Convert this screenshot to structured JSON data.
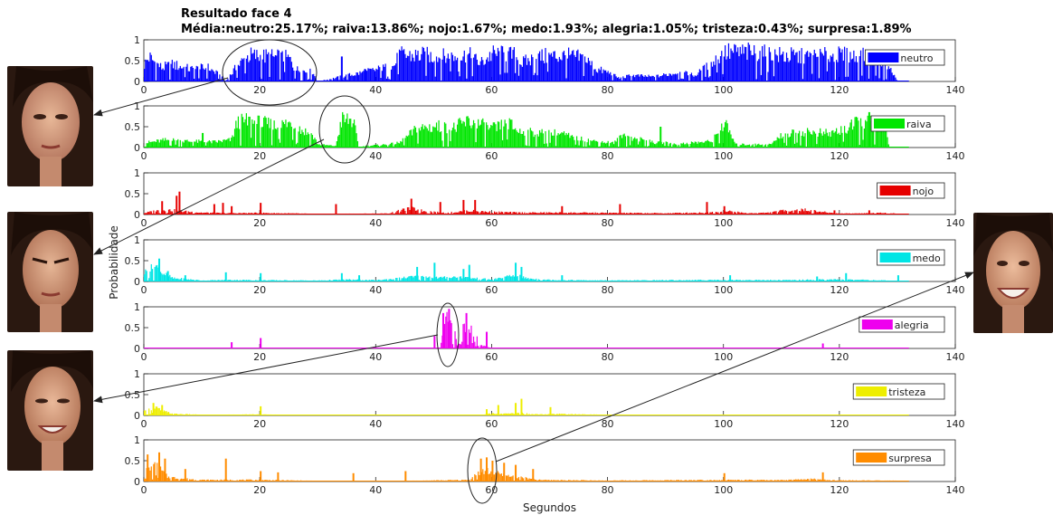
{
  "title": "Resultado face 4",
  "subtitle": "Média:neutro:25.17%; raiva:13.86%; nojo:1.67%; medo:1.93%; alegria:1.05%; tristeza:0.43%; surpresa:1.89%",
  "xlabel": "Segundos",
  "ylabel": "Probabilidade",
  "chart_data": {
    "type": "bar",
    "title": "Resultado face 4",
    "subtitle": "Média:neutro:25.17%; raiva:13.86%; nojo:1.67%; medo:1.93%; alegria:1.05%; tristeza:0.43%; surpresa:1.89%",
    "xlabel": "Segundos",
    "ylabel": "Probabilidade",
    "xlim": [
      0,
      140
    ],
    "ylim": [
      0,
      1
    ],
    "xticks": [
      0,
      20,
      40,
      60,
      80,
      100,
      120,
      140
    ],
    "yticks": [
      0,
      0.5,
      1
    ],
    "x_step": 0.2,
    "x_end": 132,
    "legend_position": "right",
    "series": [
      {
        "name": "neutro",
        "color": "#0000ff",
        "mean_percent": 25.17,
        "envelope": [
          [
            0,
            0.55
          ],
          [
            0.8,
            0.8
          ],
          [
            3,
            0.45
          ],
          [
            5,
            0.55
          ],
          [
            8,
            0.4
          ],
          [
            11,
            0.45
          ],
          [
            13,
            0.2
          ],
          [
            14,
            0
          ],
          [
            16,
            0.5
          ],
          [
            18,
            0.85
          ],
          [
            22,
            0.8
          ],
          [
            25,
            0.75
          ],
          [
            26,
            0.4
          ],
          [
            29,
            0.3
          ],
          [
            30,
            0
          ],
          [
            43,
            0.5
          ],
          [
            44,
            0.85
          ],
          [
            48,
            0.85
          ],
          [
            52,
            0.8
          ],
          [
            56,
            0.85
          ],
          [
            58,
            0.6
          ],
          [
            60,
            0.9
          ],
          [
            64,
            0.85
          ],
          [
            65,
            0.6
          ],
          [
            68,
            0.8
          ],
          [
            72,
            0.85
          ],
          [
            76,
            0.75
          ],
          [
            78,
            0.4
          ],
          [
            80,
            0.3
          ],
          [
            82,
            0.1
          ],
          [
            84,
            0.2
          ],
          [
            88,
            0.15
          ],
          [
            92,
            0.3
          ],
          [
            95,
            0.2
          ],
          [
            98,
            0.6
          ],
          [
            100,
            0.95
          ],
          [
            105,
            0.95
          ],
          [
            106,
            0.9
          ],
          [
            110,
            0.85
          ],
          [
            114,
            0.8
          ],
          [
            120,
            0.85
          ],
          [
            125,
            0.8
          ],
          [
            128,
            0.6
          ],
          [
            130,
            0
          ]
        ],
        "spikes": [
          [
            34,
            0.6
          ],
          [
            38,
            0.3
          ]
        ]
      },
      {
        "name": "raiva",
        "color": "#00e600",
        "mean_percent": 13.86,
        "envelope": [
          [
            0,
            0.15
          ],
          [
            4,
            0.25
          ],
          [
            8,
            0.2
          ],
          [
            12,
            0.18
          ],
          [
            15,
            0.25
          ],
          [
            16,
            0.8
          ],
          [
            18,
            0.85
          ],
          [
            21,
            0.75
          ],
          [
            23,
            0.7
          ],
          [
            25,
            0.8
          ],
          [
            26,
            0.7
          ],
          [
            28,
            0.5
          ],
          [
            29,
            0.4
          ],
          [
            30,
            0.1
          ],
          [
            33,
            0.05
          ],
          [
            34,
            0.9
          ],
          [
            36,
            0.9
          ],
          [
            37,
            0
          ],
          [
            38,
            0.05
          ],
          [
            42,
            0.1
          ],
          [
            44,
            0.15
          ],
          [
            47,
            0.6
          ],
          [
            50,
            0.7
          ],
          [
            53,
            0.6
          ],
          [
            56,
            0.85
          ],
          [
            60,
            0.6
          ],
          [
            63,
            0.75
          ],
          [
            65,
            0.5
          ],
          [
            68,
            0.45
          ],
          [
            72,
            0.45
          ],
          [
            74,
            0.3
          ],
          [
            76,
            0.25
          ],
          [
            78,
            0.2
          ],
          [
            81,
            0.15
          ],
          [
            83,
            0.45
          ],
          [
            84,
            0.3
          ],
          [
            86,
            0.25
          ],
          [
            88,
            0.15
          ],
          [
            90,
            0.15
          ],
          [
            92,
            0.1
          ],
          [
            94,
            0.15
          ],
          [
            98,
            0.2
          ],
          [
            100,
            0.8
          ],
          [
            101,
            0.5
          ],
          [
            102,
            0.1
          ],
          [
            108,
            0.1
          ],
          [
            110,
            0.4
          ],
          [
            114,
            0.5
          ],
          [
            118,
            0.45
          ],
          [
            121,
            0.6
          ],
          [
            124,
            0.85
          ],
          [
            126,
            0.75
          ],
          [
            128,
            0.6
          ],
          [
            128.5,
            0
          ]
        ],
        "spikes": [
          [
            10,
            0.35
          ],
          [
            58,
            0.55
          ],
          [
            89,
            0.5
          ],
          [
            125,
            0.85
          ]
        ]
      },
      {
        "name": "nojo",
        "color": "#e60000",
        "mean_percent": 1.67,
        "envelope": [
          [
            0,
            0.05
          ],
          [
            2,
            0.12
          ],
          [
            4,
            0.15
          ],
          [
            7,
            0.1
          ],
          [
            10,
            0.06
          ],
          [
            14,
            0.04
          ],
          [
            20,
            0.05
          ],
          [
            30,
            0.02
          ],
          [
            42,
            0.03
          ],
          [
            44,
            0.12
          ],
          [
            46,
            0.2
          ],
          [
            48,
            0.12
          ],
          [
            52,
            0.05
          ],
          [
            56,
            0.12
          ],
          [
            60,
            0.08
          ],
          [
            65,
            0.06
          ],
          [
            72,
            0.06
          ],
          [
            80,
            0.05
          ],
          [
            90,
            0.04
          ],
          [
            96,
            0.06
          ],
          [
            101,
            0.1
          ],
          [
            104,
            0.04
          ],
          [
            108,
            0.06
          ],
          [
            110,
            0.12
          ],
          [
            114,
            0.15
          ],
          [
            116,
            0.1
          ],
          [
            120,
            0.03
          ],
          [
            128,
            0.05
          ],
          [
            132,
            0
          ]
        ],
        "spikes": [
          [
            6,
            0.55
          ],
          [
            5.5,
            0.45
          ],
          [
            3,
            0.32
          ],
          [
            12,
            0.25
          ],
          [
            13.5,
            0.28
          ],
          [
            15,
            0.2
          ],
          [
            20,
            0.28
          ],
          [
            33,
            0.25
          ],
          [
            46,
            0.38
          ],
          [
            51,
            0.3
          ],
          [
            55,
            0.35
          ],
          [
            57,
            0.35
          ],
          [
            72,
            0.2
          ],
          [
            82,
            0.25
          ],
          [
            97,
            0.3
          ],
          [
            100,
            0.2
          ],
          [
            119,
            0.1
          ],
          [
            125,
            0.1
          ]
        ]
      },
      {
        "name": "medo",
        "color": "#00e5e5",
        "mean_percent": 1.93,
        "envelope": [
          [
            0,
            0.3
          ],
          [
            1,
            0.4
          ],
          [
            2,
            0.5
          ],
          [
            3,
            0.3
          ],
          [
            5,
            0.1
          ],
          [
            7,
            0.08
          ],
          [
            10,
            0.03
          ],
          [
            15,
            0.05
          ],
          [
            20,
            0.04
          ],
          [
            30,
            0.03
          ],
          [
            35,
            0.06
          ],
          [
            40,
            0.04
          ],
          [
            44,
            0.1
          ],
          [
            46,
            0.15
          ],
          [
            49,
            0.15
          ],
          [
            51,
            0.12
          ],
          [
            54,
            0.15
          ],
          [
            57,
            0.1
          ],
          [
            60,
            0.06
          ],
          [
            64,
            0.2
          ],
          [
            66,
            0.1
          ],
          [
            70,
            0.05
          ],
          [
            80,
            0.03
          ],
          [
            90,
            0.04
          ],
          [
            100,
            0.05
          ],
          [
            110,
            0.04
          ],
          [
            118,
            0.06
          ],
          [
            125,
            0.05
          ],
          [
            132,
            0
          ]
        ],
        "spikes": [
          [
            2.5,
            0.55
          ],
          [
            4,
            0.25
          ],
          [
            7,
            0.15
          ],
          [
            14,
            0.22
          ],
          [
            20,
            0.2
          ],
          [
            34,
            0.2
          ],
          [
            37,
            0.15
          ],
          [
            47,
            0.35
          ],
          [
            50,
            0.45
          ],
          [
            55,
            0.3
          ],
          [
            56,
            0.4
          ],
          [
            64,
            0.45
          ],
          [
            65,
            0.35
          ],
          [
            72,
            0.15
          ],
          [
            101,
            0.15
          ],
          [
            116,
            0.12
          ],
          [
            121,
            0.2
          ],
          [
            130,
            0.15
          ]
        ]
      },
      {
        "name": "alegria",
        "color": "#ee00ee",
        "mean_percent": 1.05,
        "envelope": [
          [
            0,
            0.01
          ],
          [
            51,
            0.01
          ],
          [
            52,
            0.9
          ],
          [
            53,
            0.8
          ],
          [
            53.5,
            0.5
          ],
          [
            54,
            0.1
          ],
          [
            54.8,
            0.2
          ],
          [
            55,
            0.7
          ],
          [
            56,
            0.8
          ],
          [
            56.5,
            0.5
          ],
          [
            57,
            0.2
          ],
          [
            57.5,
            0.5
          ],
          [
            58,
            0.1
          ],
          [
            59,
            0.05
          ],
          [
            60,
            0.02
          ],
          [
            132,
            0.01
          ]
        ],
        "spikes": [
          [
            15,
            0.15
          ],
          [
            20,
            0.25
          ],
          [
            50,
            0.3
          ],
          [
            51.5,
            0.85
          ],
          [
            52.5,
            0.95
          ],
          [
            55.5,
            0.85
          ],
          [
            59,
            0.4
          ],
          [
            117,
            0.12
          ]
        ]
      },
      {
        "name": "tristeza",
        "color": "#eeee00",
        "mean_percent": 0.43,
        "envelope": [
          [
            0,
            0.12
          ],
          [
            1,
            0.2
          ],
          [
            2,
            0.25
          ],
          [
            3,
            0.15
          ],
          [
            5,
            0.05
          ],
          [
            10,
            0.02
          ],
          [
            20,
            0.03
          ],
          [
            30,
            0.01
          ],
          [
            58,
            0.02
          ],
          [
            60,
            0.06
          ],
          [
            62,
            0.05
          ],
          [
            65,
            0.08
          ],
          [
            67,
            0.04
          ],
          [
            70,
            0.05
          ],
          [
            80,
            0.02
          ],
          [
            100,
            0.02
          ],
          [
            132,
            0.01
          ]
        ],
        "spikes": [
          [
            1.5,
            0.3
          ],
          [
            3,
            0.25
          ],
          [
            20,
            0.22
          ],
          [
            59,
            0.15
          ],
          [
            61,
            0.25
          ],
          [
            64,
            0.3
          ],
          [
            65,
            0.4
          ],
          [
            70,
            0.2
          ]
        ]
      },
      {
        "name": "surpresa",
        "color": "#ff8c00",
        "mean_percent": 1.89,
        "envelope": [
          [
            0,
            0.3
          ],
          [
            1,
            0.4
          ],
          [
            2,
            0.5
          ],
          [
            3,
            0.35
          ],
          [
            4,
            0.15
          ],
          [
            6,
            0.1
          ],
          [
            10,
            0.05
          ],
          [
            20,
            0.05
          ],
          [
            30,
            0.02
          ],
          [
            45,
            0.02
          ],
          [
            56,
            0.05
          ],
          [
            57,
            0.2
          ],
          [
            58,
            0.3
          ],
          [
            59,
            0.35
          ],
          [
            60,
            0.3
          ],
          [
            62,
            0.2
          ],
          [
            64,
            0.15
          ],
          [
            66,
            0.1
          ],
          [
            68,
            0.05
          ],
          [
            80,
            0.03
          ],
          [
            100,
            0.05
          ],
          [
            110,
            0.04
          ],
          [
            116,
            0.08
          ],
          [
            118,
            0.04
          ],
          [
            125,
            0.03
          ],
          [
            132,
            0.02
          ]
        ],
        "spikes": [
          [
            0.5,
            0.65
          ],
          [
            2.5,
            0.7
          ],
          [
            3.5,
            0.55
          ],
          [
            7,
            0.3
          ],
          [
            14,
            0.55
          ],
          [
            20,
            0.25
          ],
          [
            23,
            0.22
          ],
          [
            36,
            0.2
          ],
          [
            45,
            0.25
          ],
          [
            58,
            0.55
          ],
          [
            59,
            0.58
          ],
          [
            60,
            0.5
          ],
          [
            62,
            0.45
          ],
          [
            64,
            0.4
          ],
          [
            67,
            0.3
          ],
          [
            100,
            0.2
          ],
          [
            117,
            0.22
          ]
        ]
      }
    ]
  }
}
